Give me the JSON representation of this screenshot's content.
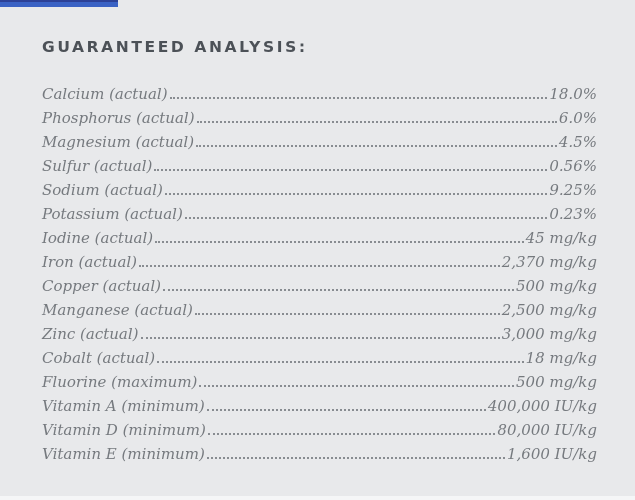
{
  "page": {
    "background_color": "#e8e9eb",
    "accent_bar_color": "#3a62c4",
    "accent_bar_edge_color": "#2c4196",
    "text_color": "#75797e",
    "heading_color": "#4c5157"
  },
  "header": {
    "title": "GUARANTEED ANALYSIS:"
  },
  "analysis": {
    "rows": [
      {
        "label": "Calcium (actual)",
        "value": "18.0%"
      },
      {
        "label": "Phosphorus (actual)",
        "value": "6.0%"
      },
      {
        "label": "Magnesium (actual)",
        "value": "4.5%"
      },
      {
        "label": "Sulfur (actual)",
        "value": "0.56%"
      },
      {
        "label": "Sodium (actual)",
        "value": "9.25%"
      },
      {
        "label": "Potassium (actual)",
        "value": "0.23%"
      },
      {
        "label": "Iodine (actual)",
        "value": "45 mg/kg"
      },
      {
        "label": "Iron (actual)",
        "value": "2,370 mg/kg"
      },
      {
        "label": "Copper (actual)",
        "value": "500 mg/kg"
      },
      {
        "label": "Manganese (actual)",
        "value": "2,500 mg/kg"
      },
      {
        "label": "Zinc (actual)",
        "value": "3,000 mg/kg"
      },
      {
        "label": "Cobalt (actual)",
        "value": "18 mg/kg"
      },
      {
        "label": "Fluorine (maximum)",
        "value": "500 mg/kg"
      },
      {
        "label": "Vitamin A (minimum)",
        "value": "400,000 IU/kg"
      },
      {
        "label": "Vitamin D (minimum)",
        "value": "80,000 IU/kg"
      },
      {
        "label": "Vitamin E (minimum)",
        "value": "1,600 IU/kg"
      }
    ]
  }
}
